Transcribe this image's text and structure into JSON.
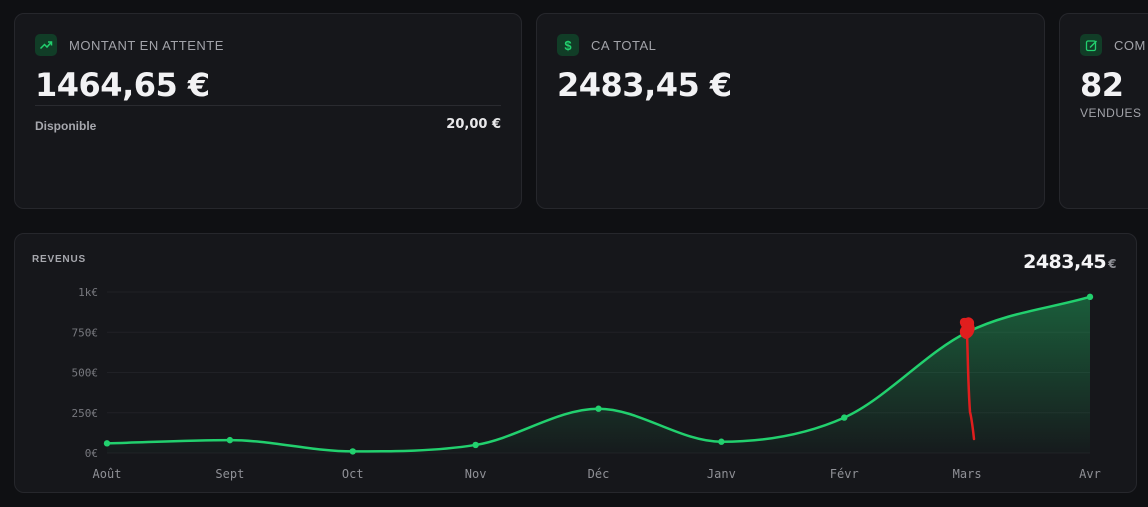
{
  "cards": [
    {
      "icon": "trending-up-icon",
      "label": "MONTANT EN ATTENTE",
      "value": "1464,65 €",
      "available_label": "Disponible",
      "available_value": "20,00 €"
    },
    {
      "icon": "dollar-icon",
      "label": "CA TOTAL",
      "value": "2483,45 €"
    },
    {
      "icon": "edit-icon",
      "label": "COM",
      "value": "82",
      "sub_label": "VENDUES"
    }
  ],
  "revenue": {
    "title": "REVENUS",
    "total": "2483,45",
    "total_currency": "€"
  },
  "colors": {
    "accent": "#22d06e",
    "annotation": "#e01e1e",
    "card_bg": "#16171b",
    "page_bg": "#0f1013"
  },
  "chart_data": {
    "type": "area",
    "categories": [
      "Août",
      "Sept",
      "Oct",
      "Nov",
      "Déc",
      "Janv",
      "Févr",
      "Mars",
      "Avr"
    ],
    "values": [
      60,
      80,
      10,
      50,
      275,
      70,
      220,
      750,
      970
    ],
    "yticks": [
      "0€",
      "250€",
      "500€",
      "750€",
      "1k€"
    ],
    "ytick_values": [
      0,
      250,
      500,
      750,
      1000
    ],
    "ylim": [
      0,
      1000
    ],
    "grid": true
  }
}
